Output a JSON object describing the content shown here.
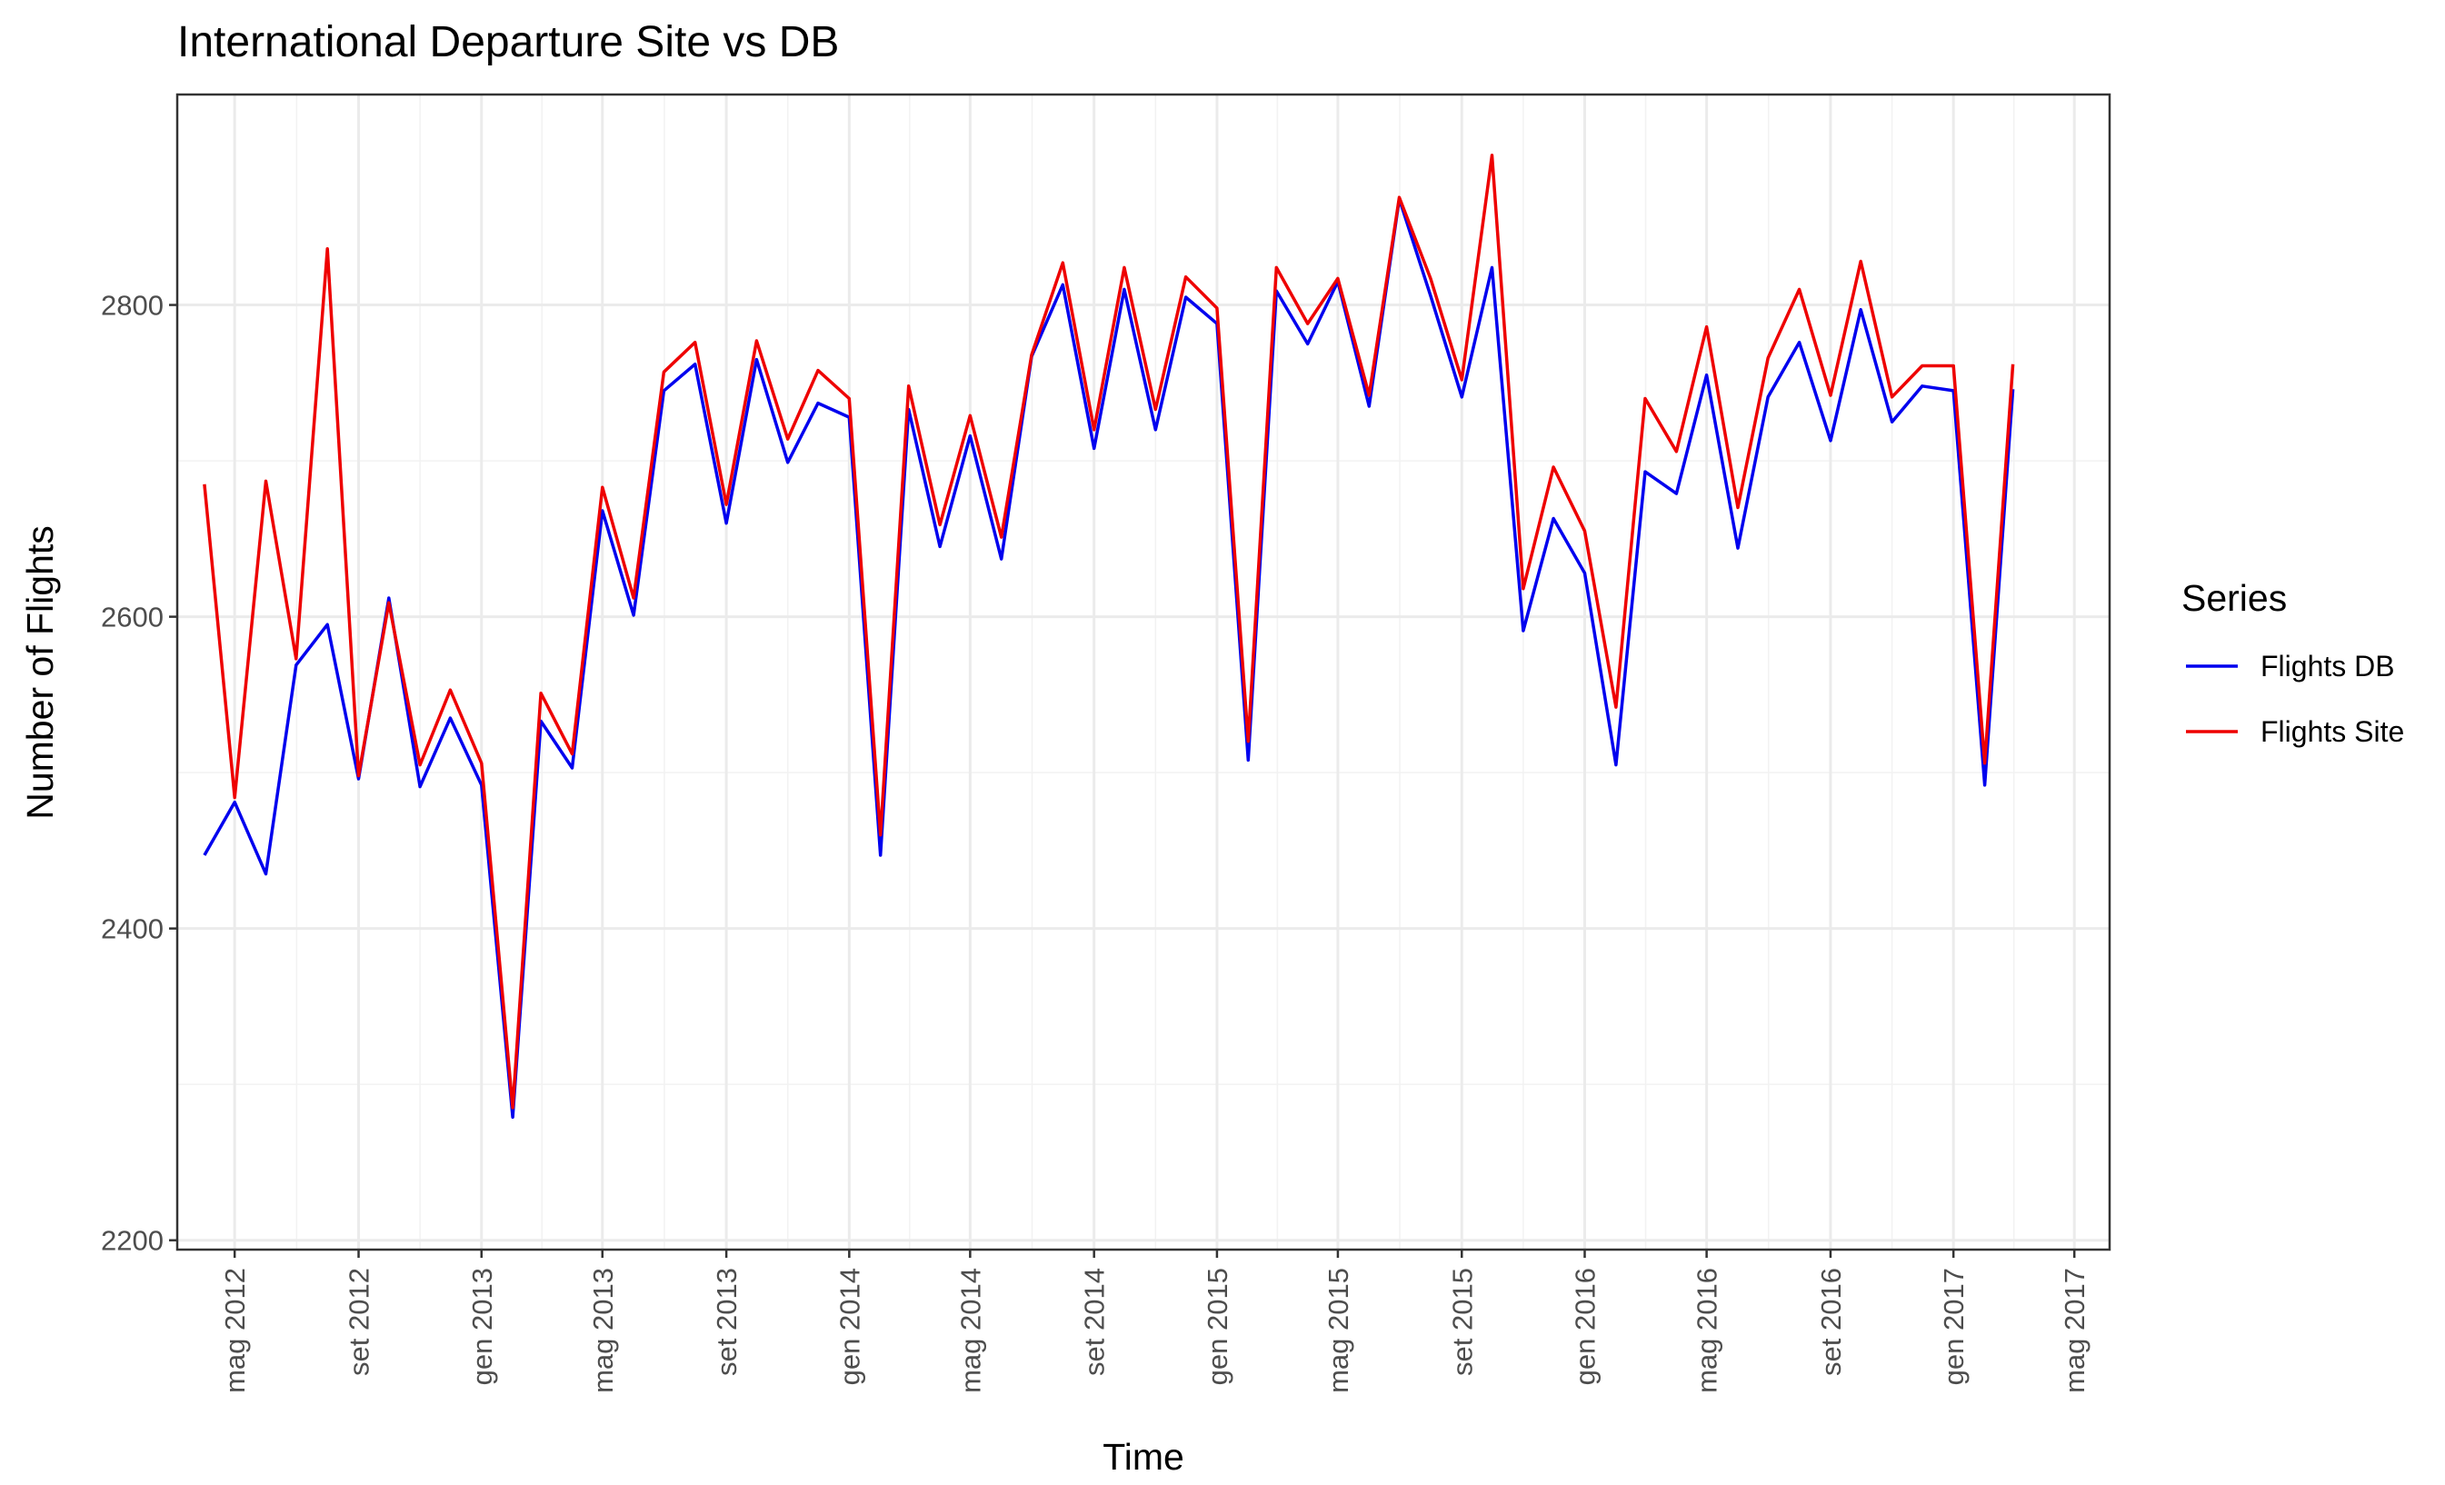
{
  "chart_data": {
    "type": "line",
    "title": "International Departure Site vs DB",
    "xlabel": "Time",
    "ylabel": "Number of Flights",
    "ylim": [
      2194,
      2935
    ],
    "yticks": [
      2200,
      2400,
      2600,
      2800
    ],
    "xlim": [
      "2012-03-05",
      "2017-06-05"
    ],
    "xticks": [
      {
        "date": "2012-05-01",
        "label": "mag 2012"
      },
      {
        "date": "2012-09-01",
        "label": "set 2012"
      },
      {
        "date": "2013-01-01",
        "label": "gen 2013"
      },
      {
        "date": "2013-05-01",
        "label": "mag 2013"
      },
      {
        "date": "2013-09-01",
        "label": "set 2013"
      },
      {
        "date": "2014-01-01",
        "label": "gen 2014"
      },
      {
        "date": "2014-05-01",
        "label": "mag 2014"
      },
      {
        "date": "2014-09-01",
        "label": "set 2014"
      },
      {
        "date": "2015-01-01",
        "label": "gen 2015"
      },
      {
        "date": "2015-05-01",
        "label": "mag 2015"
      },
      {
        "date": "2015-09-01",
        "label": "set 2015"
      },
      {
        "date": "2016-01-01",
        "label": "gen 2016"
      },
      {
        "date": "2016-05-01",
        "label": "mag 2016"
      },
      {
        "date": "2016-09-01",
        "label": "set 2016"
      },
      {
        "date": "2017-01-01",
        "label": "gen 2017"
      },
      {
        "date": "2017-05-01",
        "label": "mag 2017"
      }
    ],
    "x": [
      "2012-04-01",
      "2012-05-01",
      "2012-06-01",
      "2012-07-01",
      "2012-08-01",
      "2012-09-01",
      "2012-10-01",
      "2012-11-01",
      "2012-12-01",
      "2013-01-01",
      "2013-02-01",
      "2013-03-01",
      "2013-04-01",
      "2013-05-01",
      "2013-06-01",
      "2013-07-01",
      "2013-08-01",
      "2013-09-01",
      "2013-10-01",
      "2013-11-01",
      "2013-12-01",
      "2014-01-01",
      "2014-02-01",
      "2014-03-01",
      "2014-04-01",
      "2014-05-01",
      "2014-06-01",
      "2014-07-01",
      "2014-08-01",
      "2014-09-01",
      "2014-10-01",
      "2014-11-01",
      "2014-12-01",
      "2015-01-01",
      "2015-02-01",
      "2015-03-01",
      "2015-04-01",
      "2015-05-01",
      "2015-06-01",
      "2015-07-01",
      "2015-08-01",
      "2015-09-01",
      "2015-10-01",
      "2015-11-01",
      "2015-12-01",
      "2016-01-01",
      "2016-02-01",
      "2016-03-01",
      "2016-04-01",
      "2016-05-01",
      "2016-06-01",
      "2016-07-01",
      "2016-08-01",
      "2016-09-01",
      "2016-10-01",
      "2016-11-01",
      "2016-12-01",
      "2017-01-01",
      "2017-02-01",
      "2017-03-01"
    ],
    "series": [
      {
        "name": "Flights DB",
        "color": "#0000ee",
        "values": [
          2447,
          2481,
          2435,
          2569,
          2595,
          2496,
          2612,
          2491,
          2535,
          2492,
          2279,
          2533,
          2503,
          2668,
          2601,
          2745,
          2762,
          2660,
          2765,
          2699,
          2737,
          2728,
          2447,
          2733,
          2645,
          2716,
          2637,
          2767,
          2813,
          2708,
          2810,
          2720,
          2805,
          2788,
          2508,
          2809,
          2775,
          2815,
          2735,
          2868,
          2806,
          2741,
          2824,
          2591,
          2663,
          2628,
          2505,
          2693,
          2679,
          2755,
          2644,
          2741,
          2776,
          2713,
          2797,
          2725,
          2748,
          2745,
          2492,
          2746
        ]
      },
      {
        "name": "Flights Site",
        "color": "#ee0000",
        "values": [
          2685,
          2484,
          2687,
          2573,
          2836,
          2498,
          2609,
          2505,
          2553,
          2506,
          2285,
          2551,
          2512,
          2683,
          2612,
          2757,
          2776,
          2672,
          2777,
          2714,
          2758,
          2740,
          2460,
          2748,
          2659,
          2729,
          2651,
          2768,
          2827,
          2720,
          2824,
          2733,
          2818,
          2798,
          2520,
          2824,
          2788,
          2817,
          2742,
          2869,
          2817,
          2752,
          2896,
          2618,
          2696,
          2655,
          2542,
          2740,
          2706,
          2786,
          2670,
          2766,
          2810,
          2742,
          2828,
          2741,
          2761,
          2761,
          2506,
          2762
        ]
      }
    ],
    "legend": {
      "title": "Series",
      "position": "right"
    },
    "grid": true
  }
}
